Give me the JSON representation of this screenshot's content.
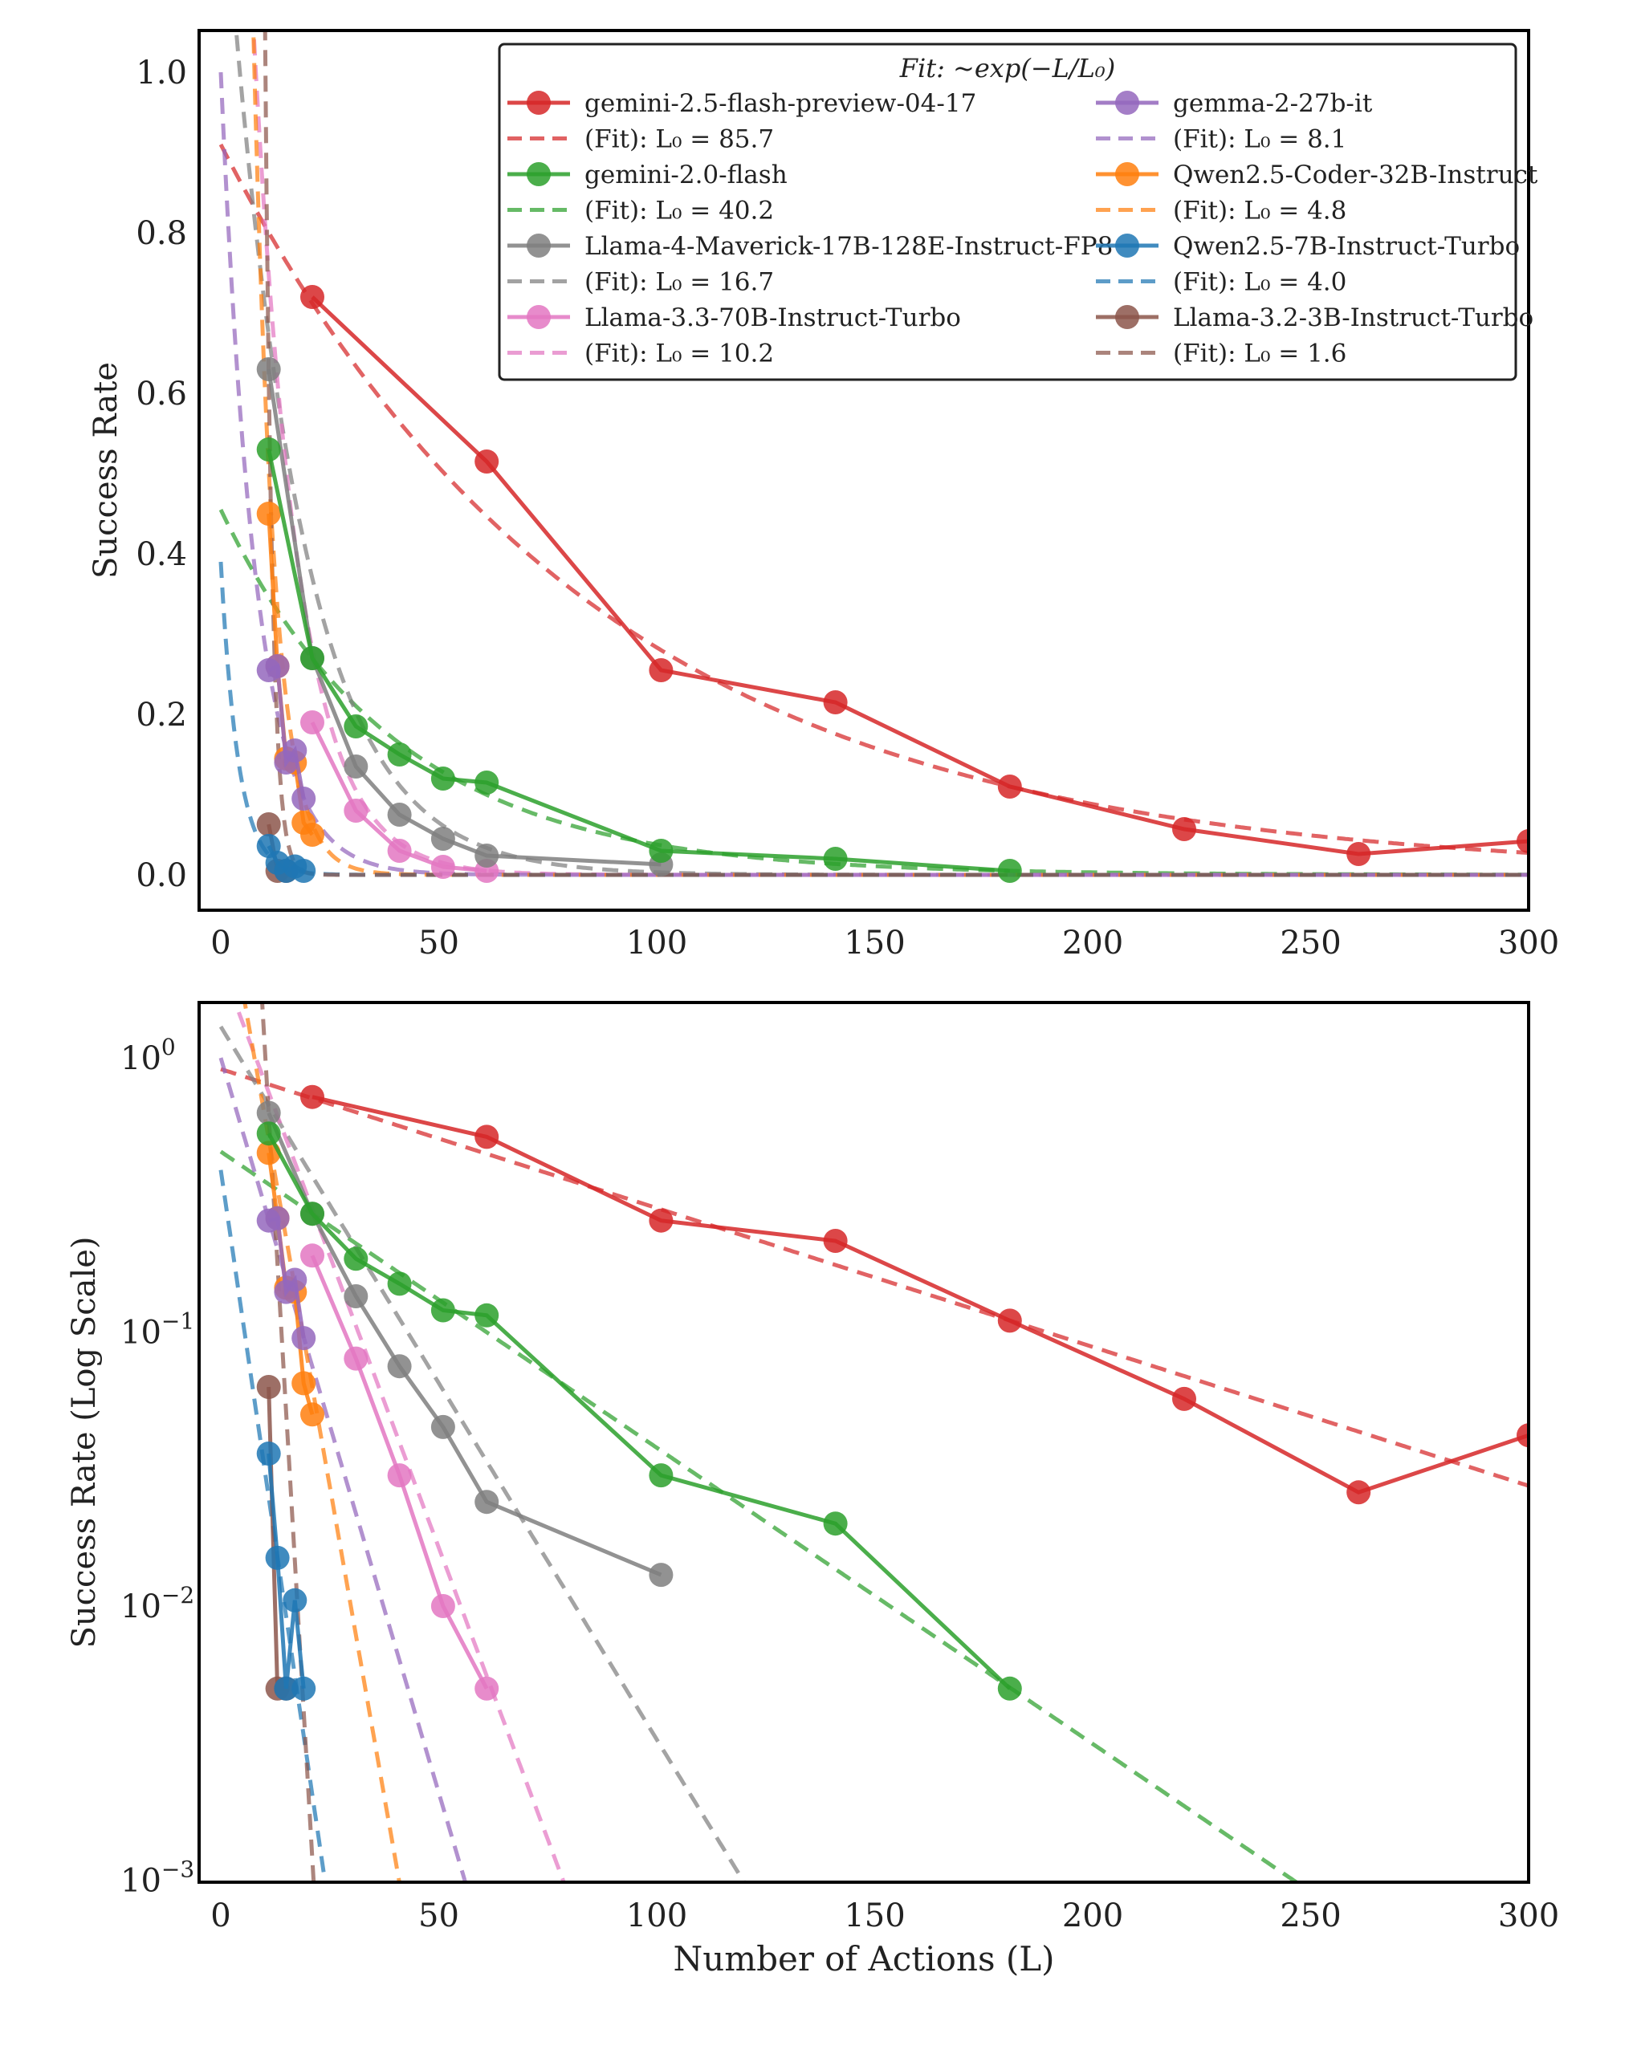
{
  "chart_data": [
    {
      "type": "line",
      "panel": "linear",
      "title": "",
      "xlabel": "",
      "ylabel": "Success Rate",
      "xlim": [
        -5,
        300
      ],
      "ylim": [
        -0.05,
        1.05
      ],
      "xticks": [
        "0",
        "50",
        "100",
        "150",
        "200",
        "250",
        "300"
      ],
      "yticks": [
        "0.0",
        "0.2",
        "0.4",
        "0.6",
        "0.8",
        "1.0"
      ],
      "legend": {
        "title": "Fit: ~exp(−L/L₀)",
        "placement": "top-right",
        "entries": [
          {
            "name": "gemini-2.5-flash-preview-04-17",
            "fit_label": "(Fit): L₀ = 85.7"
          },
          {
            "name": "gemini-2.0-flash",
            "fit_label": "(Fit): L₀ = 40.2"
          },
          {
            "name": "Llama-4-Maverick-17B-128E-Instruct-FP8",
            "fit_label": "(Fit): L₀ = 16.7"
          },
          {
            "name": "Llama-3.3-70B-Instruct-Turbo",
            "fit_label": "(Fit): L₀ = 10.2"
          },
          {
            "name": "gemma-2-27b-it",
            "fit_label": "(Fit): L₀ = 8.1"
          },
          {
            "name": "Qwen2.5-Coder-32B-Instruct",
            "fit_label": "(Fit): L₀ = 4.8"
          },
          {
            "name": "Qwen2.5-7B-Instruct-Turbo",
            "fit_label": "(Fit): L₀ = 4.0"
          },
          {
            "name": "Llama-3.2-3B-Instruct-Turbo",
            "fit_label": "(Fit): L₀ = 1.6"
          }
        ]
      }
    },
    {
      "type": "line",
      "panel": "log",
      "title": "",
      "xlabel": "Number of Actions (L)",
      "ylabel": "Success Rate (Log Scale)",
      "yscale": "log",
      "xlim": [
        -5,
        300
      ],
      "ylim": [
        0.001,
        1.5
      ],
      "xticks": [
        "0",
        "50",
        "100",
        "150",
        "200",
        "250",
        "300"
      ],
      "yticks": [
        {
          "base": "10",
          "exp": "0"
        },
        {
          "base": "10",
          "exp": "−1"
        },
        {
          "base": "10",
          "exp": "−2"
        },
        {
          "base": "10",
          "exp": "−3"
        }
      ]
    }
  ],
  "series": [
    {
      "name": "gemini-2.5-flash-preview-04-17",
      "color": "#d62728",
      "L0": 85.7,
      "A": 0.91,
      "x": [
        21,
        61,
        101,
        141,
        181,
        221,
        261,
        300
      ],
      "y": [
        0.72,
        0.515,
        0.255,
        0.215,
        0.11,
        0.057,
        0.026,
        0.042
      ]
    },
    {
      "name": "gemini-2.0-flash",
      "color": "#2ca02c",
      "L0": 40.2,
      "A": 0.455,
      "x": [
        11,
        21,
        31,
        41,
        51,
        61,
        101,
        141,
        181
      ],
      "y": [
        0.53,
        0.27,
        0.185,
        0.15,
        0.12,
        0.115,
        0.03,
        0.02,
        0.005
      ]
    },
    {
      "name": "Llama-4-Maverick-17B-128E-Instruct-FP8",
      "color": "#7f7f7f",
      "L0": 16.7,
      "A": 1.3,
      "x": [
        11,
        21,
        31,
        41,
        51,
        61,
        101
      ],
      "y": [
        0.63,
        0.27,
        0.135,
        0.075,
        0.045,
        0.024,
        0.013
      ]
    },
    {
      "name": "Llama-3.3-70B-Instruct-Turbo",
      "color": "#e377c2",
      "L0": 10.2,
      "A": 2.2,
      "x": [
        21,
        31,
        41,
        51,
        61
      ],
      "y": [
        0.19,
        0.08,
        0.03,
        0.01,
        0.005
      ]
    },
    {
      "name": "gemma-2-27b-it",
      "color": "#9467bd",
      "L0": 8.1,
      "A": 1.0,
      "x": [
        11,
        13,
        15,
        17,
        19
      ],
      "y": [
        0.255,
        0.26,
        0.14,
        0.155,
        0.095
      ]
    },
    {
      "name": "Qwen2.5-Coder-32B-Instruct",
      "color": "#ff7f0e",
      "L0": 4.8,
      "A": 5.0,
      "x": [
        11,
        13,
        15,
        17,
        19,
        21
      ],
      "y": [
        0.45,
        0.26,
        0.145,
        0.14,
        0.065,
        0.05
      ]
    },
    {
      "name": "Qwen2.5-7B-Instruct-Turbo",
      "color": "#1f77b4",
      "L0": 4.0,
      "A": 0.39,
      "x": [
        11,
        13,
        15,
        17,
        19
      ],
      "y": [
        0.036,
        0.015,
        0.005,
        0.0105,
        0.005
      ]
    },
    {
      "name": "Llama-3.2-3B-Instruct-Turbo",
      "color": "#8c564b",
      "L0": 1.6,
      "A": 600,
      "x": [
        11,
        13,
        15
      ],
      "y": [
        0.063,
        0.005,
        0.005
      ]
    }
  ]
}
